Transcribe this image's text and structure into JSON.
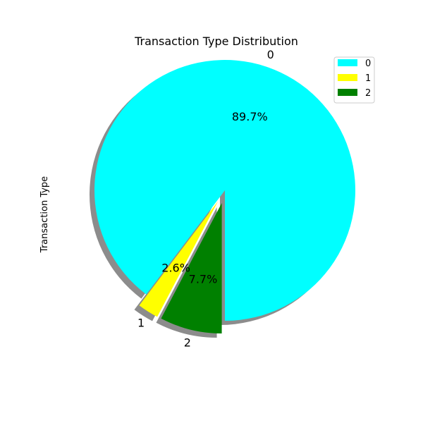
{
  "chart_data": {
    "type": "pie",
    "title": "Transaction Type Distribution",
    "ylabel": "Transaction Type",
    "categories": [
      "0",
      "1",
      "2"
    ],
    "values": [
      89.7,
      2.6,
      7.7
    ],
    "percent_labels": [
      "89.7%",
      "2.6%",
      "7.7%"
    ],
    "colors": [
      "#00ffff",
      "#ffff00",
      "#008000"
    ],
    "exploded": [
      0,
      0.1,
      0.1
    ],
    "shadow": true,
    "legend": {
      "placement": "top-right",
      "entries": [
        "0",
        "1",
        "2"
      ]
    }
  }
}
